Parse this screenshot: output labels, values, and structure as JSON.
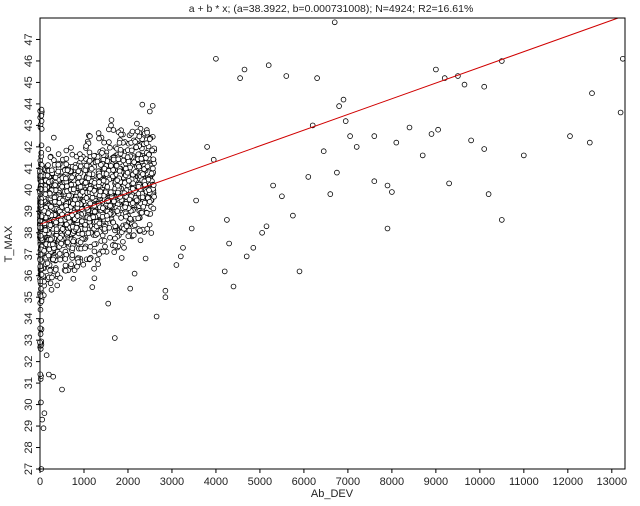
{
  "chart_data": {
    "type": "scatter",
    "title": "a + b * x; (a=38.3922, b=0.000731008); N=4924; R2=16.61%",
    "xlabel": "Ab_DEV",
    "ylabel": "T_MAX",
    "xlim": [
      0,
      13300
    ],
    "ylim": [
      27,
      48
    ],
    "x_ticks": [
      0,
      1000,
      2000,
      3000,
      4000,
      5000,
      6000,
      7000,
      8000,
      9000,
      10000,
      11000,
      12000,
      13000
    ],
    "y_ticks": [
      27,
      28,
      29,
      30,
      31,
      32,
      33,
      34,
      35,
      36,
      37,
      38,
      39,
      40,
      41,
      42,
      43,
      44,
      45,
      46,
      47
    ],
    "grid": false,
    "fit_line": {
      "intercept": 38.3922,
      "slope": 0.000731008,
      "color": "#d00000"
    },
    "marker": {
      "shape": "open-circle",
      "color": "#000000"
    },
    "series": [
      {
        "points": [
          [
            6700,
            47.8
          ],
          [
            4000,
            46.1
          ],
          [
            4650,
            45.6
          ],
          [
            4550,
            45.2
          ],
          [
            5200,
            45.8
          ],
          [
            5600,
            45.3
          ],
          [
            6300,
            45.2
          ],
          [
            9000,
            45.6
          ],
          [
            9200,
            45.2
          ],
          [
            9500,
            45.3
          ],
          [
            9650,
            44.9
          ],
          [
            10100,
            44.8
          ],
          [
            10500,
            46.0
          ],
          [
            12550,
            44.5
          ],
          [
            13250,
            46.1
          ],
          [
            13200,
            43.6
          ],
          [
            12050,
            42.5
          ],
          [
            12500,
            42.2
          ],
          [
            11000,
            41.6
          ],
          [
            10200,
            39.8
          ],
          [
            10500,
            38.6
          ],
          [
            9800,
            42.3
          ],
          [
            10100,
            41.9
          ],
          [
            9300,
            40.3
          ],
          [
            8700,
            41.6
          ],
          [
            8900,
            42.6
          ],
          [
            9050,
            42.8
          ],
          [
            8400,
            42.9
          ],
          [
            8100,
            42.2
          ],
          [
            7900,
            40.2
          ],
          [
            8000,
            39.9
          ],
          [
            7900,
            38.2
          ],
          [
            7600,
            40.4
          ],
          [
            7600,
            42.5
          ],
          [
            7200,
            42.0
          ],
          [
            7050,
            42.5
          ],
          [
            6950,
            43.2
          ],
          [
            6900,
            44.2
          ],
          [
            6800,
            43.9
          ],
          [
            6750,
            40.8
          ],
          [
            6600,
            39.8
          ],
          [
            6450,
            41.8
          ],
          [
            6200,
            43.0
          ],
          [
            6100,
            40.6
          ],
          [
            5750,
            38.8
          ],
          [
            5900,
            36.2
          ],
          [
            5500,
            39.7
          ],
          [
            5300,
            40.2
          ],
          [
            5150,
            38.3
          ],
          [
            5050,
            38.0
          ],
          [
            4850,
            37.3
          ],
          [
            4700,
            36.9
          ],
          [
            4300,
            37.5
          ],
          [
            4400,
            35.5
          ],
          [
            4200,
            36.2
          ],
          [
            4250,
            38.6
          ],
          [
            3950,
            41.4
          ],
          [
            3800,
            42.0
          ],
          [
            3550,
            39.5
          ],
          [
            3450,
            38.2
          ],
          [
            3250,
            37.3
          ],
          [
            3100,
            36.5
          ],
          [
            3200,
            36.9
          ],
          [
            2850,
            35.3
          ],
          [
            2650,
            34.1
          ],
          [
            2850,
            35.0
          ],
          [
            2400,
            36.8
          ],
          [
            2150,
            36.1
          ],
          [
            2050,
            35.4
          ],
          [
            1700,
            33.1
          ],
          [
            1550,
            34.7
          ],
          [
            500,
            30.7
          ],
          [
            300,
            31.3
          ],
          [
            200,
            31.4
          ],
          [
            100,
            29.6
          ],
          [
            80,
            28.9
          ],
          [
            50,
            29.3
          ],
          [
            20,
            30.1
          ],
          [
            30,
            27.0
          ],
          [
            150,
            32.3
          ],
          [
            0,
            32.9
          ]
        ],
        "dense_region": {
          "x_range": [
            0,
            2600
          ],
          "y_mean_base": 38.5,
          "y_spread": 3.3,
          "count": 1700
        }
      }
    ]
  }
}
